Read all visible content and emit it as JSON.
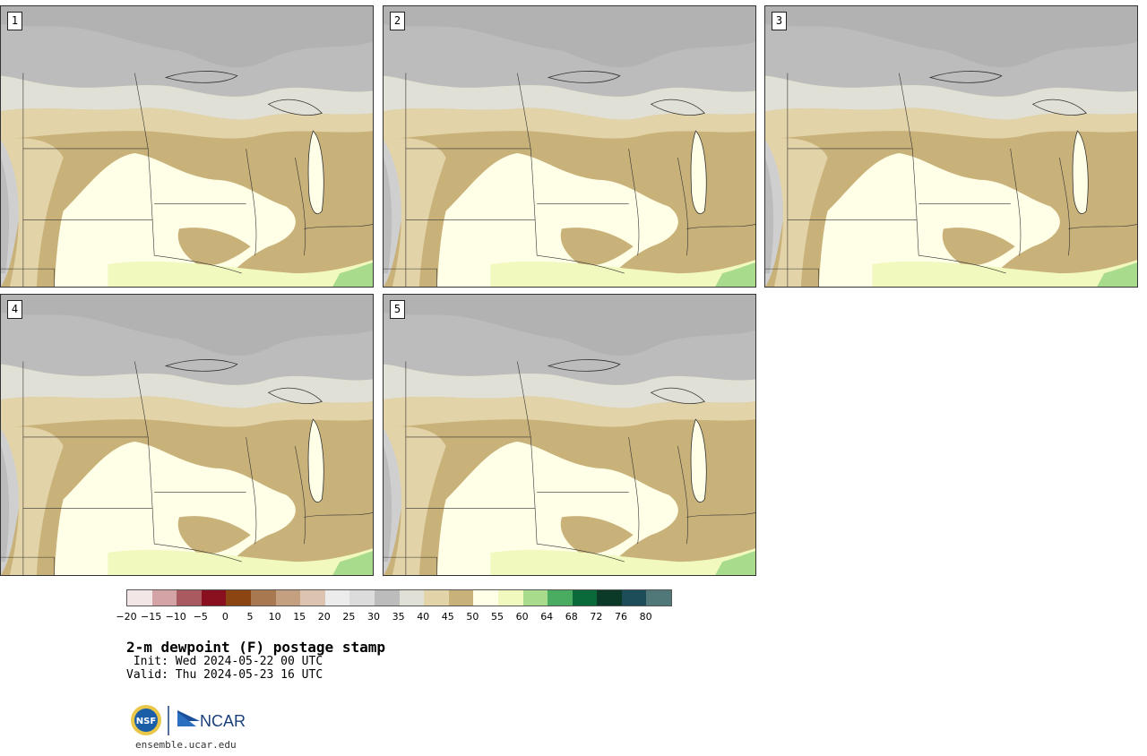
{
  "members": [
    {
      "label": "1"
    },
    {
      "label": "2"
    },
    {
      "label": "3"
    },
    {
      "label": "4"
    },
    {
      "label": "5"
    }
  ],
  "colorbar": {
    "ticks": [
      "−20",
      "−15",
      "−10",
      "−5",
      "0",
      "5",
      "10",
      "15",
      "20",
      "25",
      "30",
      "35",
      "40",
      "45",
      "50",
      "55",
      "60",
      "64",
      "68",
      "72",
      "76",
      "80"
    ],
    "colors": [
      "#f2e6e6",
      "#d4a3a6",
      "#a95a60",
      "#8a1020",
      "#8b4513",
      "#a87850",
      "#c4a080",
      "#dcc4b0",
      "#ececec",
      "#dcdcdc",
      "#bcbcbc",
      "#e0e0d6",
      "#e3d3a8",
      "#c9b27a",
      "#fffee6",
      "#f2f9be",
      "#a8db8c",
      "#4aac60",
      "#0b6a3a",
      "#0c3a28",
      "#1e4d5a",
      "#507878"
    ]
  },
  "title": "2-m dewpoint (F) postage stamp",
  "init": " Init: Wed 2024-05-22 00 UTC",
  "valid": "Valid: Thu 2024-05-23 16 UTC",
  "logos": {
    "nsf": "NSF",
    "ncar": "NCAR"
  },
  "url": "ensemble.ucar.edu"
}
